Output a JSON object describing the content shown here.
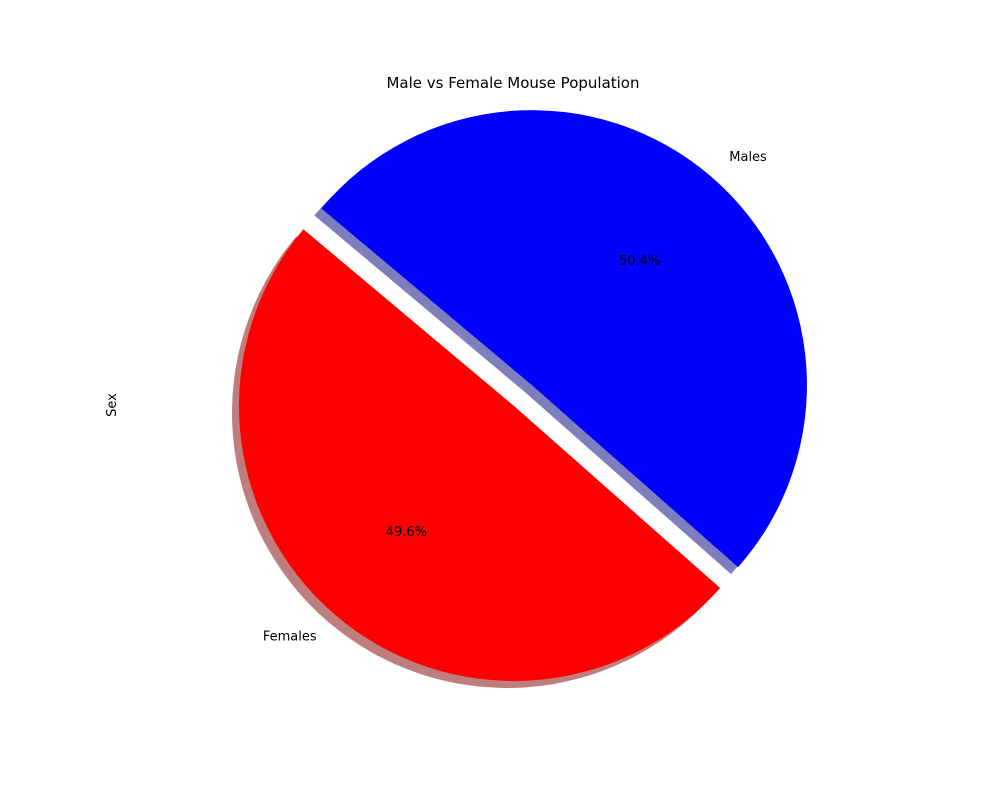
{
  "chart_data": {
    "type": "pie",
    "title": "Male vs Female Mouse Population",
    "ylabel": "Sex",
    "slices": [
      {
        "label": "Females",
        "value": 49.6,
        "pct_label": "49.6%",
        "color": "#ff0000",
        "exploded": false
      },
      {
        "label": "Males",
        "value": 50.4,
        "pct_label": "50.4%",
        "color": "#0000ff",
        "exploded": true
      }
    ],
    "shadow": true,
    "legend": "none"
  }
}
